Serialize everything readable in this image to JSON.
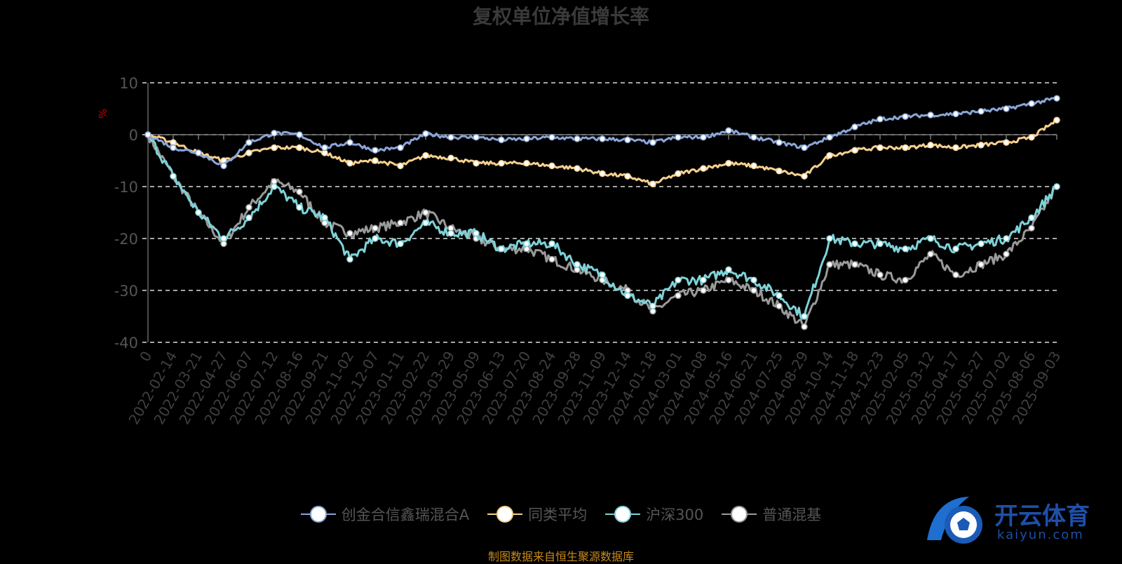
{
  "chart_data": {
    "type": "line",
    "title": "复权单位净值增长率",
    "ylabel": "%",
    "ylim": [
      -40,
      10
    ],
    "yticks": [
      10,
      0,
      -10,
      -20,
      -30,
      -40
    ],
    "grid": true,
    "legend_position": "bottom",
    "categories": [
      "0",
      "2022-02-14",
      "2022-03-21",
      "2022-04-27",
      "2022-06-07",
      "2022-07-12",
      "2022-08-16",
      "2022-09-21",
      "2022-11-02",
      "2022-12-07",
      "2023-01-11",
      "2023-02-22",
      "2023-03-29",
      "2023-05-09",
      "2023-06-13",
      "2023-07-20",
      "2023-08-24",
      "2023-09-28",
      "2023-11-09",
      "2023-12-14",
      "2024-01-18",
      "2024-03-01",
      "2024-04-08",
      "2024-05-16",
      "2024-06-21",
      "2024-07-25",
      "2024-08-29",
      "2024-10-14",
      "2024-11-18",
      "2024-12-23",
      "2025-02-05",
      "2025-03-12",
      "2025-04-17",
      "2025-05-27",
      "2025-07-02",
      "2025-08-06",
      "2025-09-03"
    ],
    "series": [
      {
        "name": "创金合信鑫瑞混合A",
        "color": "#8aa6d8",
        "values": [
          0,
          -2.5,
          -3.5,
          -6,
          -1.5,
          0.3,
          0,
          -2.5,
          -1.5,
          -3,
          -2.5,
          0.2,
          -0.5,
          -0.5,
          -1,
          -0.8,
          -0.5,
          -0.8,
          -0.8,
          -1,
          -1.5,
          -0.5,
          -0.5,
          0.8,
          -0.5,
          -1.5,
          -2.5,
          -0.5,
          1.5,
          3,
          3.5,
          3.8,
          4,
          4.5,
          5,
          6,
          7
        ]
      },
      {
        "name": "同类平均",
        "color": "#f6d08e",
        "values": [
          0,
          -1.5,
          -3.5,
          -5,
          -3.5,
          -2.5,
          -2.5,
          -3.5,
          -5.5,
          -5,
          -6,
          -4,
          -4.5,
          -5.5,
          -5.5,
          -5.5,
          -6,
          -6.5,
          -7.5,
          -8,
          -9.5,
          -7.5,
          -6.5,
          -5.5,
          -6,
          -7,
          -8,
          -4,
          -3,
          -2.5,
          -2.5,
          -2,
          -2.5,
          -2,
          -1.5,
          -0.5,
          2.8
        ]
      },
      {
        "name": "沪深300",
        "color": "#7ed3d9",
        "values": [
          0,
          -8,
          -15,
          -20,
          -16,
          -10,
          -14,
          -16,
          -24,
          -20,
          -21,
          -17,
          -19,
          -19,
          -22,
          -21,
          -21,
          -25,
          -27,
          -31,
          -33,
          -28,
          -28,
          -26,
          -28,
          -31,
          -35,
          -20,
          -21,
          -21,
          -22,
          -20,
          -22,
          -21,
          -20,
          -16,
          -10
        ]
      },
      {
        "name": "普通混基",
        "color": "#9a9a9a",
        "values": [
          0,
          -8,
          -15,
          -21,
          -14,
          -9,
          -11,
          -17,
          -19,
          -18,
          -17,
          -15,
          -18,
          -20,
          -22,
          -22,
          -24,
          -26,
          -28,
          -30,
          -34,
          -31,
          -30,
          -28,
          -30,
          -33,
          -37,
          -25,
          -25,
          -27,
          -28,
          -23,
          -27,
          -25,
          -23,
          -18,
          -10
        ]
      }
    ]
  },
  "footer": {
    "source": "制图数据来自恒生聚源数据库",
    "logo_main": "开云体育",
    "logo_sub": "kaiyun.com"
  }
}
